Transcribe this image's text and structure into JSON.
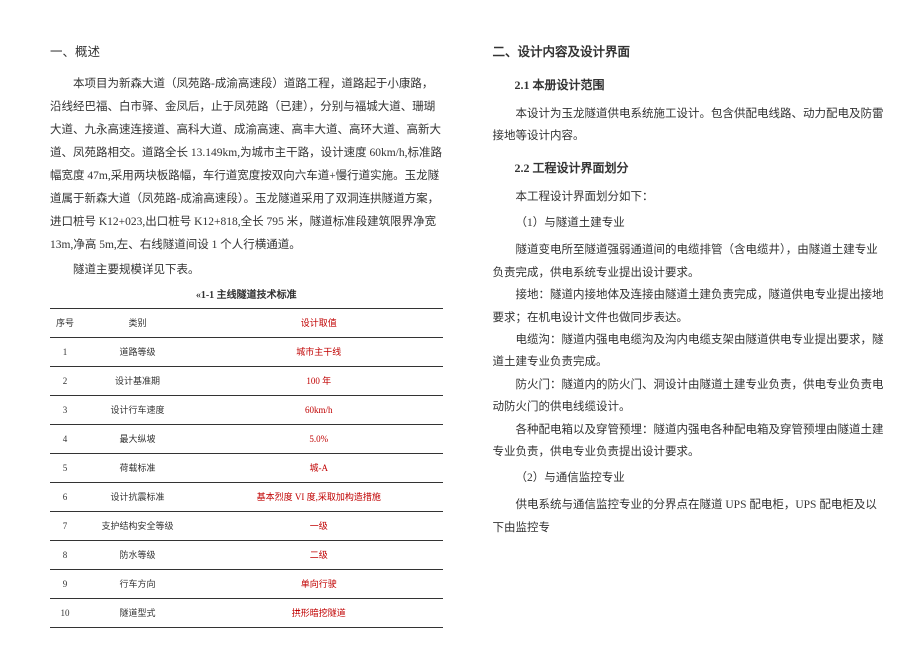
{
  "left": {
    "heading": "一、概述",
    "p1": "本项目为新森大道（凤苑路-成渝高速段）道路工程，道路起于小康路，沿线经巴福、白市驿、金凤后，止于凤苑路（已建），分别与福城大道、珊瑚大道、九永高速连接道、高科大道、成渝高速、高丰大道、高环大道、高新大道、凤苑路相交。道路全长 13.149km,为城市主干路，设计速度 60km/h,标准路幅宽度 47m,采用两块板路幅，车行道宽度按双向六车道+慢行道实施。玉龙隧道属于新森大道（凤苑路-成渝高速段）。玉龙隧道采用了双洞连拱隧道方案，进口桩号 K12+023,出口桩号 K12+818,全长 795 米，隧道标准段建筑限界净宽 13m,净高 5m,左、右线隧道间设 1 个人行横通道。",
    "p2": "隧道主要规模详见下表。",
    "table_title": "«1-1 主线隧道技术标准",
    "table": {
      "headers": [
        "序号",
        "类别",
        "设计取值"
      ],
      "rows": [
        [
          "1",
          "道路等级",
          "城市主干线"
        ],
        [
          "2",
          "设计基准期",
          "100 年"
        ],
        [
          "3",
          "设计行车速度",
          "60km/h"
        ],
        [
          "4",
          "最大纵坡",
          "5.0%"
        ],
        [
          "5",
          "荷载标准",
          "城-A"
        ],
        [
          "6",
          "设计抗震标准",
          "基本烈度 VI 度,采取加构造措施"
        ],
        [
          "7",
          "支护结构安全等级",
          "一级"
        ],
        [
          "8",
          "防水等级",
          "二级"
        ],
        [
          "9",
          "行车方向",
          "单向行驶"
        ],
        [
          "10",
          "隧道型式",
          "拱形暗挖隧道"
        ]
      ]
    }
  },
  "right": {
    "heading": "二、设计内容及设计界面",
    "s21_title": "2.1   本册设计范围",
    "s21_p1": "本设计为玉龙隧道供电系统施工设计。包含供配电线路、动力配电及防雷接地等设计内容。",
    "s22_title": "2.2   工程设计界面划分",
    "s22_p1": "本工程设计界面划分如下：",
    "sub1": "（1）与隧道土建专业",
    "s22_p2": "隧道变电所至隧道强弱通道间的电缆排管（含电缆井），由隧道土建专业负责完成，供电系统专业提出设计要求。",
    "s22_p3": "接地：隧道内接地体及连接由隧道土建负责完成，隧道供电专业提出接地要求；在机电设计文件也做同步表达。",
    "s22_p4": "电缆沟：隧道内强电电缆沟及沟内电缆支架由隧道供电专业提出要求，隧道土建专业负责完成。",
    "s22_p5": "防火门：隧道内的防火门、洞设计由隧道土建专业负责，供电专业负责电动防火门的供电线缆设计。",
    "s22_p6": "各种配电箱以及穿管预埋：隧道内强电各种配电箱及穿管预埋由隧道土建专业负责，供电专业负责提出设计要求。",
    "sub2": "（2）与通信监控专业",
    "s22_p7": "供电系统与通信监控专业的分界点在隧道 UPS 配电柜，UPS 配电柜及以下由监控专"
  },
  "colors": {
    "text": "#333333",
    "accent": "#c00000",
    "background": "#ffffff",
    "border": "#333333"
  }
}
